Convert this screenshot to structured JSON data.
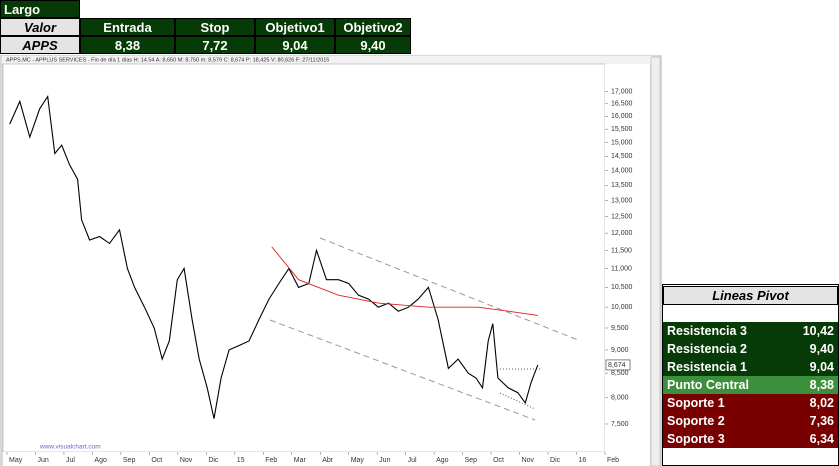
{
  "trade_table": {
    "title": "Largo",
    "header": [
      "Valor",
      "Entrada",
      "Stop",
      "Objetivo1",
      "Objetivo2"
    ],
    "row": [
      "APPS",
      "8,38",
      "7,72",
      "9,04",
      "9,40"
    ]
  },
  "pivot_table": {
    "title": "Lineas Pivot",
    "rows": [
      [
        "Resistencia 3",
        "10,42"
      ],
      [
        "Resistencia 2",
        "9,40"
      ],
      [
        "Resistencia 1",
        "9,04"
      ],
      [
        "Punto Central",
        "8,38"
      ],
      [
        "Soporte 1",
        "8,02"
      ],
      [
        "Soporte 2",
        "7,36"
      ],
      [
        "Soporte 3",
        "6,34"
      ]
    ]
  },
  "chart_data": {
    "type": "line",
    "header": "APPS.MC - APPLUS SERVICES - Fin de día 1 días H: 14.54 A: 8,650 M: 8,750 m: 8,579 C: 8,674 P: 18,425 V: 80,626 F: 27/11/2015",
    "watermark": "www.visualchart.com",
    "log_scale": true,
    "xlim": [
      -0.14,
      21.0
    ],
    "ylim": [
      7.0,
      18.2
    ],
    "xticks": [
      {
        "value": 0,
        "label": "May"
      },
      {
        "value": 1,
        "label": "Jun"
      },
      {
        "value": 2,
        "label": "Jul"
      },
      {
        "value": 3,
        "label": "Ago"
      },
      {
        "value": 4,
        "label": "Sep"
      },
      {
        "value": 5,
        "label": "Oct"
      },
      {
        "value": 6,
        "label": "Nov"
      },
      {
        "value": 7,
        "label": "Dic"
      },
      {
        "value": 8,
        "label": "15"
      },
      {
        "value": 9,
        "label": "Feb"
      },
      {
        "value": 10,
        "label": "Mar"
      },
      {
        "value": 11,
        "label": "Abr"
      },
      {
        "value": 12,
        "label": "May"
      },
      {
        "value": 13,
        "label": "Jun"
      },
      {
        "value": 14,
        "label": "Jul"
      },
      {
        "value": 15,
        "label": "Ago"
      },
      {
        "value": 16,
        "label": "Sep"
      },
      {
        "value": 17,
        "label": "Oct"
      },
      {
        "value": 18,
        "label": "Nov"
      },
      {
        "value": 19,
        "label": "Dic"
      },
      {
        "value": 20,
        "label": "16"
      },
      {
        "value": 21,
        "label": "Feb"
      }
    ],
    "yticks": [
      {
        "value": 7.5,
        "label": "7,500"
      },
      {
        "value": 8,
        "label": "8,000"
      },
      {
        "value": 8.5,
        "label": "8,500"
      },
      {
        "value": 9,
        "label": "9,000"
      },
      {
        "value": 9.5,
        "label": "9,500"
      },
      {
        "value": 10,
        "label": "10,000"
      },
      {
        "value": 10.5,
        "label": "10,500"
      },
      {
        "value": 11,
        "label": "11,000"
      },
      {
        "value": 11.5,
        "label": "11,500"
      },
      {
        "value": 12,
        "label": "12,000"
      },
      {
        "value": 12.5,
        "label": "12,500"
      },
      {
        "value": 13,
        "label": "13,000"
      },
      {
        "value": 13.5,
        "label": "13,500"
      },
      {
        "value": 14,
        "label": "14,000"
      },
      {
        "value": 14.5,
        "label": "14,500"
      },
      {
        "value": 15,
        "label": "15,000"
      },
      {
        "value": 15.5,
        "label": "15,500"
      },
      {
        "value": 16,
        "label": "16,000"
      },
      {
        "value": 16.5,
        "label": "16,500"
      },
      {
        "value": 17,
        "label": "17,000"
      }
    ],
    "last_price": {
      "value": 8.674,
      "label": "8,674"
    },
    "series": [
      {
        "color": "#000000",
        "x": [
          0.1,
          0.45,
          0.8,
          1.15,
          1.43,
          1.68,
          1.92,
          2.2,
          2.48,
          2.62,
          2.9,
          3.25,
          3.6,
          3.95,
          4.23,
          4.48,
          4.83,
          5.17,
          5.45,
          5.7,
          5.98,
          6.22,
          6.5,
          6.75,
          7.03,
          7.27,
          7.52,
          7.8,
          8.15,
          8.5,
          8.85,
          9.2,
          9.55,
          9.9,
          10.24,
          10.6,
          10.87,
          11.22,
          11.64,
          12.0,
          12.34,
          12.7,
          13.04,
          13.4,
          13.74,
          14.1,
          14.44,
          14.8,
          15.14,
          15.5,
          15.84,
          16.2,
          16.47,
          16.7,
          16.9,
          17.06,
          17.24,
          17.6,
          17.94,
          18.2,
          18.4,
          18.64
        ],
        "values": [
          15.7,
          16.6,
          15.2,
          16.3,
          16.8,
          14.6,
          14.9,
          14.2,
          13.7,
          12.4,
          11.8,
          11.9,
          11.7,
          12.1,
          11.0,
          10.5,
          10.0,
          9.5,
          8.8,
          9.2,
          10.7,
          11.0,
          9.7,
          8.8,
          8.2,
          7.6,
          8.4,
          9.0,
          9.1,
          9.2,
          9.7,
          10.2,
          10.6,
          11.0,
          10.5,
          10.6,
          11.5,
          10.7,
          10.7,
          10.6,
          10.3,
          10.2,
          10.0,
          10.1,
          9.9,
          10.0,
          10.2,
          10.5,
          9.7,
          8.6,
          8.8,
          8.5,
          8.4,
          8.2,
          9.2,
          9.6,
          8.4,
          8.2,
          8.1,
          7.9,
          8.3,
          8.674
        ]
      },
      {
        "color": "#e02020",
        "x": [
          9.3,
          10.24,
          11.64,
          13.04,
          14.8,
          16.54,
          17.6,
          18.64
        ],
        "values": [
          11.6,
          10.7,
          10.3,
          10.1,
          10.0,
          10.0,
          9.9,
          9.8
        ]
      }
    ]
  }
}
